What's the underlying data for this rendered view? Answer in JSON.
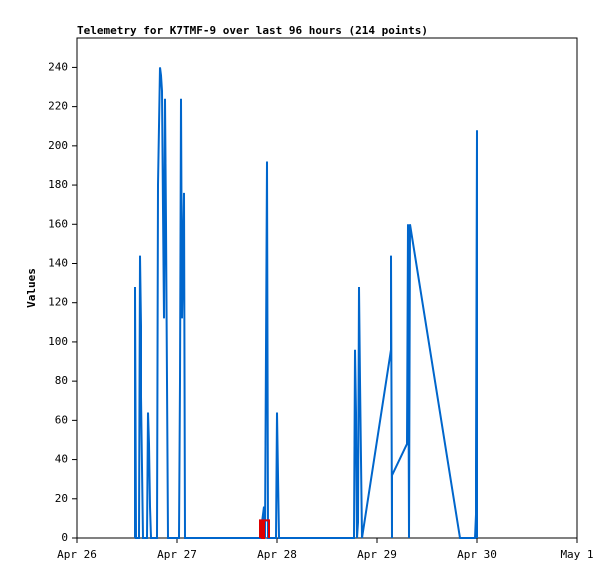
{
  "chart_data": {
    "type": "line",
    "title": "Telemetry for K7TMF-9 over last 96 hours (214 points)",
    "y_label": "Values",
    "xlim": [
      0,
      5
    ],
    "xticks": [
      {
        "value": 0,
        "label": "Apr 26"
      },
      {
        "value": 1,
        "label": "Apr 27"
      },
      {
        "value": 2,
        "label": "Apr 28"
      },
      {
        "value": 3,
        "label": "Apr 29"
      },
      {
        "value": 4,
        "label": "Apr 30"
      },
      {
        "value": 5,
        "label": "May 1"
      }
    ],
    "ylim": [
      0,
      255
    ],
    "yticks": [
      0,
      20,
      40,
      60,
      80,
      100,
      120,
      140,
      160,
      180,
      200,
      220,
      240
    ],
    "series": [
      {
        "color": "#0066cc",
        "x": [
          0.58,
          0.58,
          0.59,
          0.62,
          0.63,
          0.64,
          0.64,
          0.65,
          0.66,
          0.7,
          0.71,
          0.72,
          0.73,
          0.74,
          0.8,
          0.81,
          0.83,
          0.84,
          0.85,
          0.86,
          0.87,
          0.88,
          0.89,
          0.9,
          0.91,
          1.02,
          1.03,
          1.04,
          1.05,
          1.07,
          1.08,
          1.84,
          1.85,
          1.87,
          1.88,
          1.9,
          1.91,
          1.99,
          2.0,
          2.01,
          2.02,
          2.77,
          2.78,
          2.79,
          2.8,
          2.81,
          2.82,
          2.83,
          2.85,
          3.14,
          3.14,
          3.15,
          3.15,
          3.3,
          3.31,
          3.32,
          3.33,
          3.83,
          3.98,
          3.99,
          3.99,
          4.0,
          4.0
        ],
        "values": [
          0,
          128,
          0,
          0,
          144,
          108,
          72,
          36,
          0,
          0,
          64,
          48,
          16,
          0,
          0,
          180,
          240,
          236,
          228,
          168,
          112,
          224,
          160,
          80,
          0,
          0,
          80,
          224,
          112,
          176,
          0,
          0,
          8,
          16,
          0,
          192,
          0,
          0,
          64,
          32,
          0,
          0,
          96,
          64,
          0,
          8,
          128,
          80,
          0,
          96,
          144,
          0,
          32,
          48,
          160,
          0,
          160,
          0,
          0,
          12,
          36,
          208,
          0
        ]
      },
      {
        "color": "#dd0000",
        "x": [
          1.83,
          1.83,
          1.85,
          1.85,
          1.87,
          1.87,
          1.92,
          1.92
        ],
        "values": [
          0,
          9,
          9,
          0,
          0,
          9,
          9,
          0
        ]
      }
    ]
  }
}
